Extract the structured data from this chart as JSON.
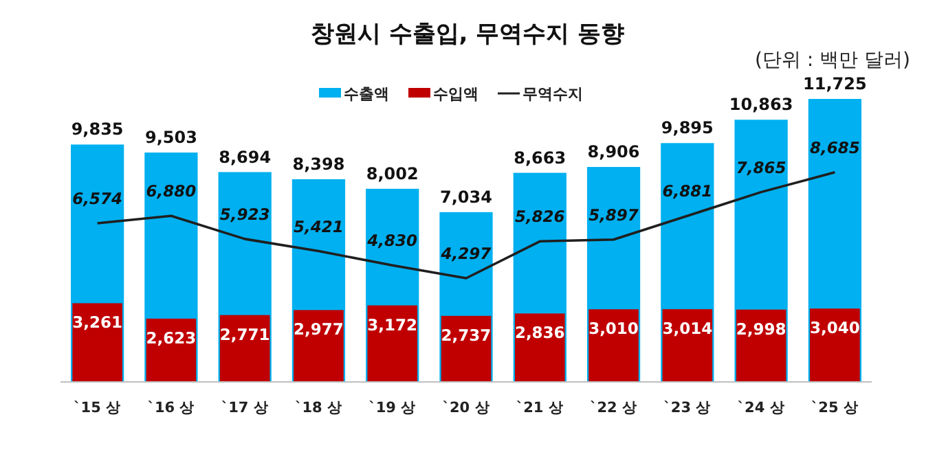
{
  "chart_data": {
    "type": "bar",
    "title": "창원시 수출입, 무역수지 동향",
    "annotations": [
      "(단위 : 백만 달러)"
    ],
    "categories": [
      "`15 상",
      "`16 상",
      "`17 상",
      "`18 상",
      "`19 상",
      "`20 상",
      "`21 상",
      "`22 상",
      "`23 상",
      "`24 상",
      "`25 상"
    ],
    "series": [
      {
        "name": "수출액",
        "color": "#00b0f0",
        "values": [
          9835,
          9503,
          8694,
          8398,
          8002,
          7034,
          8663,
          8906,
          9895,
          10863,
          11725
        ],
        "value_labels": [
          "9,835",
          "9,503",
          "8,694",
          "8,398",
          "8,002",
          "7,034",
          "8,663",
          "8,906",
          "9,895",
          "10,863",
          "11,725"
        ]
      },
      {
        "name": "수입액",
        "color": "#c00000",
        "values": [
          3261,
          2623,
          2771,
          2977,
          3172,
          2737,
          2836,
          3010,
          3014,
          2998,
          3040
        ],
        "value_labels": [
          "3,261",
          "2,623",
          "2,771",
          "2,977",
          "3,172",
          "2,737",
          "2,836",
          "3,010",
          "3,014",
          "2,998",
          "3,040"
        ]
      },
      {
        "name": "무역수지",
        "type": "line",
        "color": "#1f1f1f",
        "values": [
          6574,
          6880,
          5923,
          5421,
          4830,
          4297,
          5826,
          5897,
          6881,
          7865,
          8685
        ],
        "value_labels": [
          "6,574",
          "6,880",
          "5,923",
          "5,421",
          "4,830",
          "4,297",
          "5,826",
          "5,897",
          "6,881",
          "7,865",
          "8,685"
        ]
      }
    ],
    "legend": "top",
    "marker": "none",
    "line_style": "solid"
  }
}
